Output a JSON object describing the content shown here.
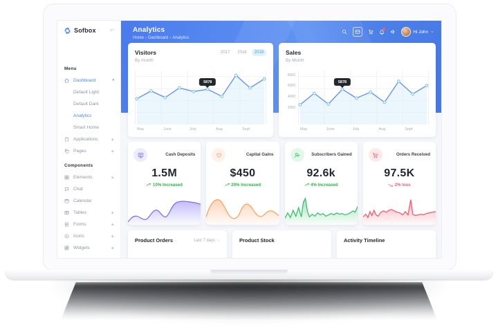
{
  "app": {
    "name": "Sofbox"
  },
  "header": {
    "title": "Analytics",
    "breadcrumb": [
      "Home",
      "Dashboard",
      "Analytics"
    ],
    "user_greeting": "Hi John",
    "icons": [
      "search",
      "mail",
      "cart",
      "bell",
      "announcement"
    ]
  },
  "sidebar": {
    "sections": [
      {
        "label": "Menu",
        "items": [
          {
            "label": "Dashboard",
            "icon": "home",
            "active": true,
            "expanded": true
          },
          {
            "label": "Default Light",
            "sub": true
          },
          {
            "label": "Default Dark",
            "sub": true
          },
          {
            "label": "Analytics",
            "sub": true,
            "active": true
          },
          {
            "label": "Smart Home",
            "sub": true
          },
          {
            "label": "Applications",
            "icon": "clipboard",
            "plus": true
          },
          {
            "label": "Pages",
            "icon": "copy",
            "plus": true
          }
        ]
      },
      {
        "label": "Components",
        "items": [
          {
            "label": "Elements",
            "icon": "grid",
            "plus": true
          },
          {
            "label": "Chat",
            "icon": "chat"
          },
          {
            "label": "Calendar",
            "icon": "calendar"
          },
          {
            "label": "Tables",
            "icon": "table",
            "plus": true
          },
          {
            "label": "Forms",
            "icon": "form",
            "plus": true
          },
          {
            "label": "Icons",
            "icon": "info",
            "plus": true
          },
          {
            "label": "Widgets",
            "icon": "widget",
            "plus": true
          }
        ]
      }
    ]
  },
  "chart_data": [
    {
      "type": "line",
      "title": "Visitors",
      "subtitle": "By month",
      "tabs": [
        "2017",
        "2018",
        "2019"
      ],
      "active_tab": "2019",
      "x_labels": [
        "May",
        "June",
        "July",
        "Aug",
        "Sept"
      ],
      "values": [
        4300,
        5600,
        4500,
        6100,
        5500,
        5878,
        4700,
        8200,
        6100,
        7600
      ],
      "ylim": [
        0,
        9000
      ],
      "grid": true,
      "tooltip": {
        "index": 5,
        "label": "5878"
      },
      "line_color": "#5f8ef5",
      "fill_color": "#daf0f9"
    },
    {
      "type": "line",
      "title": "Sales",
      "subtitle": "By Month",
      "x_labels": [
        "May",
        "June",
        "July",
        "Aug",
        "Sept"
      ],
      "y_ticks": [
        "8000",
        "6000",
        "4000",
        "2000"
      ],
      "values": [
        3300,
        5200,
        3400,
        5878,
        4400,
        5400,
        3700,
        7200,
        5100,
        6500
      ],
      "ylim": [
        0,
        9000
      ],
      "grid": true,
      "tooltip": {
        "index": 3,
        "label": "5878"
      },
      "line_color": "#5f8ef5",
      "fill_color": "#daf0f9"
    }
  ],
  "stats": [
    {
      "label": "Cash Deposits",
      "value": "1.5M",
      "change": "10% Increased",
      "direction": "up",
      "accent": "#7b6cf6",
      "icon": "device"
    },
    {
      "label": "Capital Gains",
      "value": "$450",
      "change": "20% Increased",
      "direction": "up",
      "accent": "#f9a05f",
      "icon": "heart"
    },
    {
      "label": "Subscribers Gained",
      "value": "92.6k",
      "change": "4% Increased",
      "direction": "up",
      "accent": "#35c06a",
      "icon": "user-plus"
    },
    {
      "label": "Orders Received",
      "value": "97.5K",
      "change": "2% loss",
      "direction": "down",
      "accent": "#f4586c",
      "icon": "cart"
    }
  ],
  "panels": [
    {
      "title": "Product Orders",
      "filter": "Last 7 days"
    },
    {
      "title": "Product Stock"
    },
    {
      "title": "Activity Timeline"
    }
  ],
  "colors": {
    "primary": "#4788ff",
    "header_gradient_start": "#4a7bee",
    "header_gradient_end": "#5f93f2",
    "positive": "#27b345",
    "negative": "#f4586c",
    "active_tab_bg": "#def1fd",
    "active_tab_text": "#3ea2f4",
    "tooltip_bg": "#24272e"
  }
}
